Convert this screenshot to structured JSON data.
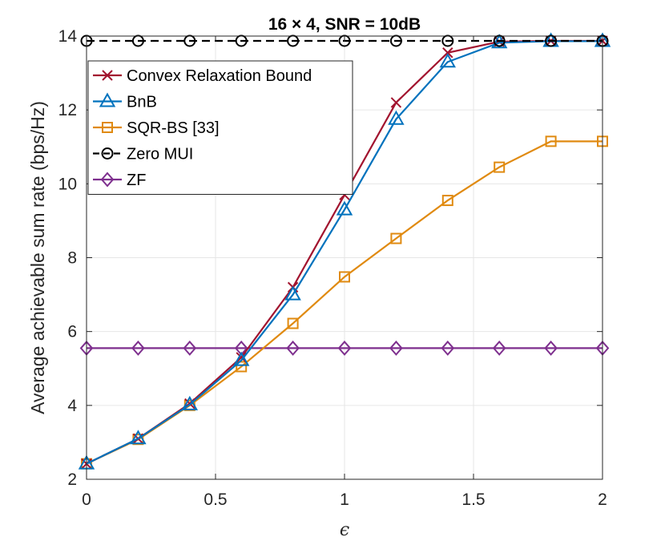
{
  "chart_data": {
    "type": "line",
    "title": "16 × 4, SNR = 10dB",
    "xlabel": "ϵ",
    "ylabel": "Average achievable sum rate (bps/Hz)",
    "xlim": [
      0,
      2
    ],
    "ylim": [
      2,
      14
    ],
    "xticks": [
      0,
      0.5,
      1,
      1.5,
      2
    ],
    "xtick_labels": [
      "0",
      "0.5",
      "1",
      "1.5",
      "2"
    ],
    "yticks": [
      2,
      4,
      6,
      8,
      10,
      12,
      14
    ],
    "ytick_labels": [
      "2",
      "4",
      "6",
      "8",
      "10",
      "12",
      "14"
    ],
    "grid": true,
    "legend_position": "top-left",
    "x": [
      0,
      0.2,
      0.4,
      0.6,
      0.8,
      1.0,
      1.2,
      1.4,
      1.6,
      1.8,
      2.0
    ],
    "series": [
      {
        "name": "Convex Relaxation Bound",
        "color": "#A2142F",
        "marker": "x",
        "dash": "solid",
        "values": [
          2.42,
          3.1,
          4.05,
          5.3,
          7.2,
          9.7,
          12.2,
          13.55,
          13.85,
          13.87,
          13.87
        ]
      },
      {
        "name": "BnB",
        "color": "#0072BD",
        "marker": "triangle",
        "dash": "solid",
        "values": [
          2.42,
          3.1,
          4.02,
          5.22,
          7.0,
          9.3,
          11.75,
          13.3,
          13.82,
          13.86,
          13.86
        ]
      },
      {
        "name": "SQR-BS [33]",
        "color": "#EDB120",
        "stroke": "#E08A10",
        "marker": "square",
        "dash": "solid",
        "values": [
          2.42,
          3.08,
          4.0,
          5.05,
          6.22,
          7.48,
          8.52,
          9.55,
          10.45,
          11.15,
          11.15
        ]
      },
      {
        "name": "Zero MUI",
        "color": "#000000",
        "marker": "circle",
        "dash": "dashed",
        "values": [
          13.87,
          13.87,
          13.87,
          13.87,
          13.87,
          13.87,
          13.87,
          13.87,
          13.87,
          13.87,
          13.87
        ]
      },
      {
        "name": "ZF",
        "color": "#7E2F8E",
        "marker": "diamond",
        "dash": "solid",
        "values": [
          5.55,
          5.55,
          5.55,
          5.55,
          5.55,
          5.55,
          5.55,
          5.55,
          5.55,
          5.55,
          5.55
        ]
      }
    ]
  }
}
